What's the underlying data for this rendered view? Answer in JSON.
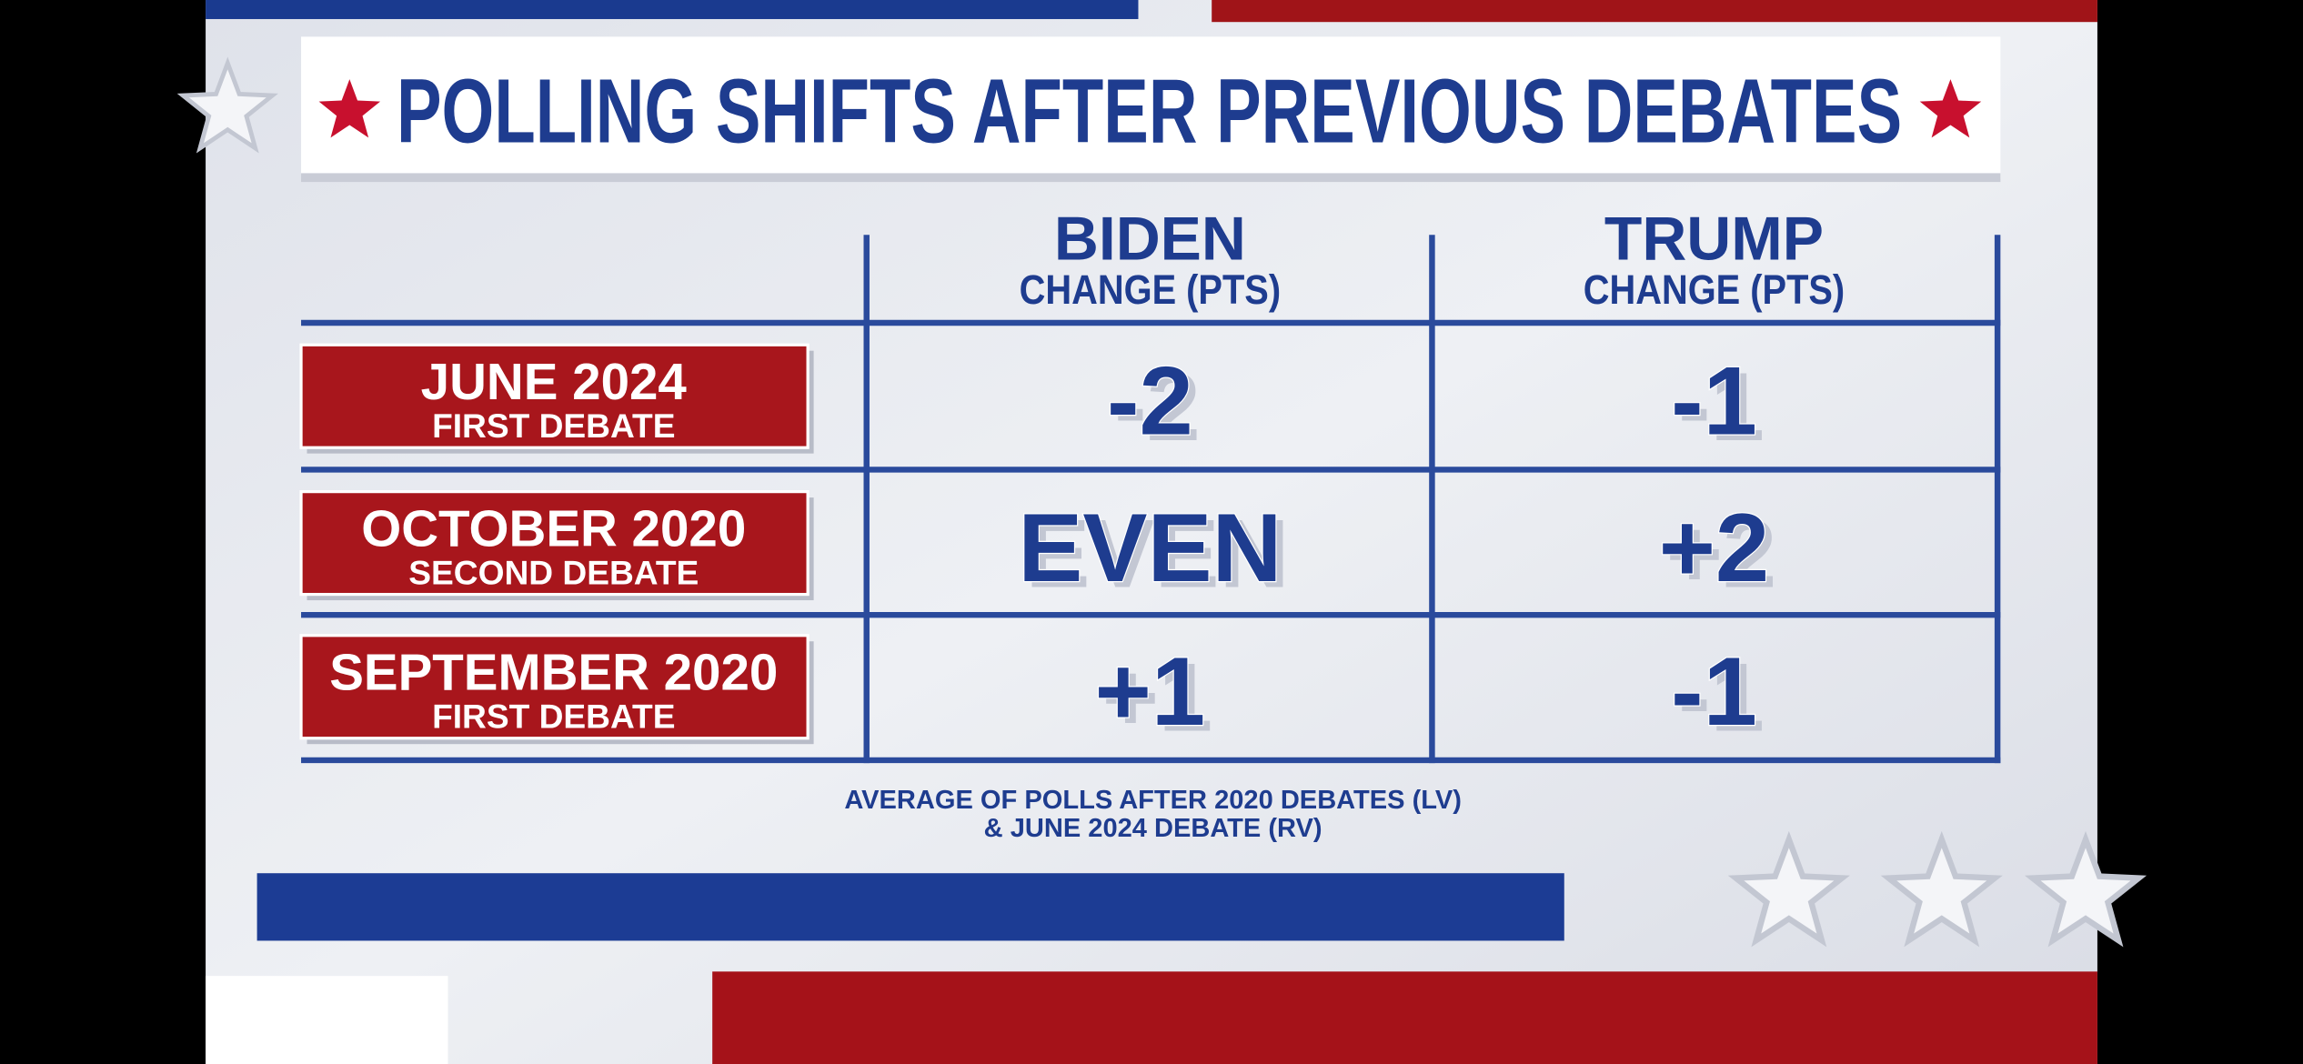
{
  "header": {
    "title": "POLLING SHIFTS AFTER PREVIOUS DEBATES"
  },
  "table": {
    "columns": [
      {
        "name": "BIDEN",
        "subtitle": "CHANGE (PTS)"
      },
      {
        "name": "TRUMP",
        "subtitle": "CHANGE (PTS)"
      }
    ],
    "rows": [
      {
        "date": "JUNE 2024",
        "debate": "FIRST DEBATE",
        "values": [
          "-2",
          "-1"
        ]
      },
      {
        "date": "OCTOBER 2020",
        "debate": "SECOND DEBATE",
        "values": [
          "EVEN",
          "+2"
        ]
      },
      {
        "date": "SEPTEMBER 2020",
        "debate": "FIRST DEBATE",
        "values": [
          "+1",
          "-1"
        ]
      }
    ]
  },
  "footnote": [
    "AVERAGE OF POLLS AFTER 2020 DEBATES (LV)",
    "& JUNE 2024 DEBATE (RV)"
  ]
}
